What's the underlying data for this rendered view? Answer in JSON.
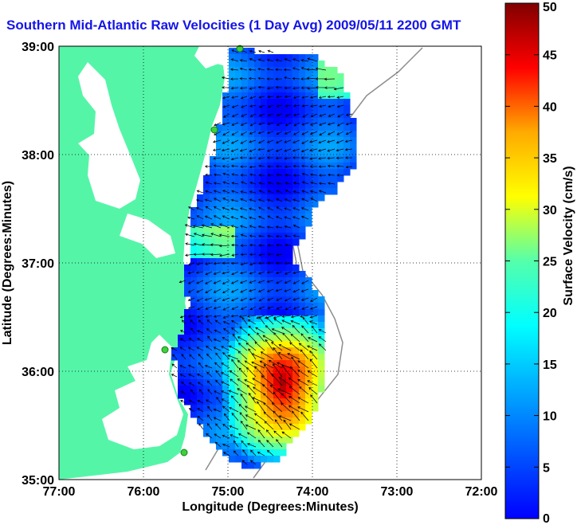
{
  "title": "Southern Mid-Atlantic Raw Velocities (1 Day Avg) 2009/05/11 2200 GMT",
  "map": {
    "xlabel": "Longitude (Degrees:Minutes)",
    "ylabel": "Latitude (Degrees:Minutes)",
    "x_ticks": [
      "77:00",
      "76:00",
      "75:00",
      "74:00",
      "73:00",
      "72:00"
    ],
    "y_ticks": [
      "39:00",
      "38:00",
      "37:00",
      "36:00",
      "35:00"
    ],
    "grid": true,
    "land_color": "#55f5a8",
    "shelf_contour_color": "#8c8c8c"
  },
  "colorbar": {
    "label": "Surface Velocity (cm/s)",
    "ticks": [
      "50",
      "45",
      "40",
      "35",
      "30",
      "25",
      "20",
      "15",
      "10",
      "5",
      "0"
    ],
    "range": [
      0,
      50
    ],
    "colormap": "jet"
  }
}
